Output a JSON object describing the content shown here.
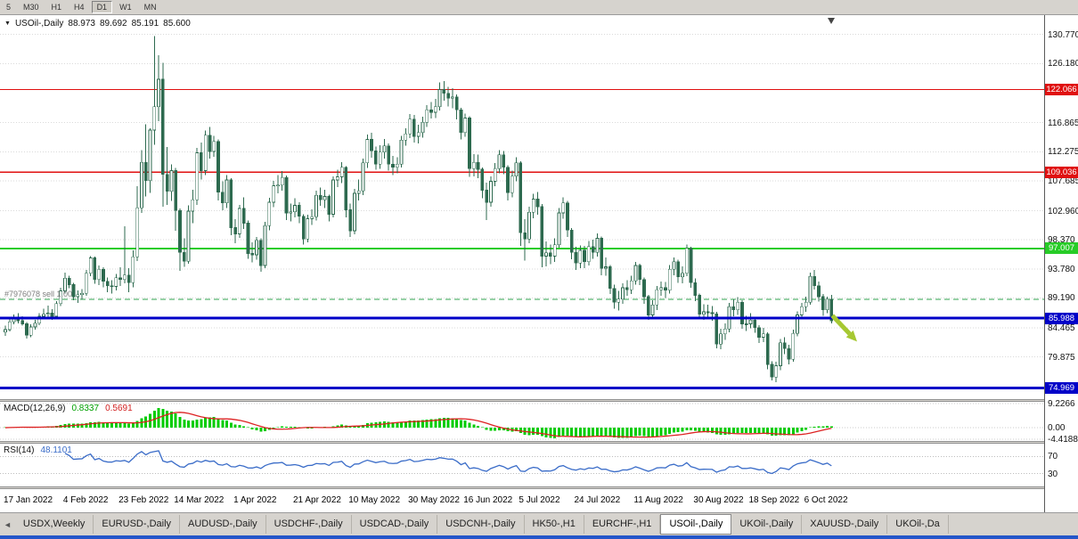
{
  "toolbar": {
    "timeframes": [
      "5",
      "M30",
      "H1",
      "H4",
      "D1",
      "W1",
      "MN"
    ],
    "active": "D1"
  },
  "chart_header": {
    "symbol": "USOil-,Daily",
    "open": "88.973",
    "high": "89.692",
    "low": "85.191",
    "close": "85.600"
  },
  "price_axis": {
    "ticks": [
      {
        "text": "130.770",
        "value": 130.77
      },
      {
        "text": "126.180",
        "value": 126.18
      },
      {
        "text": "116.865",
        "value": 116.865
      },
      {
        "text": "112.275",
        "value": 112.275
      },
      {
        "text": "107.685",
        "value": 107.685
      },
      {
        "text": "102.960",
        "value": 102.96
      },
      {
        "text": "98.370",
        "value": 98.37
      },
      {
        "text": "93.780",
        "value": 93.78
      },
      {
        "text": "89.190",
        "value": 89.19
      },
      {
        "text": "84.465",
        "value": 84.465
      },
      {
        "text": "79.875",
        "value": 79.875
      }
    ],
    "badges": [
      {
        "text": "122.066",
        "value": 122.066,
        "color": "#e01010"
      },
      {
        "text": "109.036",
        "value": 109.036,
        "color": "#e01010"
      },
      {
        "text": "97.007",
        "value": 97.007,
        "color": "#27cc27"
      },
      {
        "text": "85.988",
        "value": 85.988,
        "color": "#0000c8"
      },
      {
        "text": "74.969",
        "value": 74.969,
        "color": "#0000c8"
      }
    ]
  },
  "macd_panel": {
    "title": "MACD(12,26,9)",
    "value": "0.8337",
    "signal_value": "0.5691",
    "axis_labels": [
      {
        "text": "9.2266",
        "value": 9.2266
      },
      {
        "text": "0.00",
        "value": 0
      },
      {
        "text": "-4.4188",
        "value": -4.4188
      }
    ]
  },
  "rsi_panel": {
    "title": "RSI(14)",
    "value": "48.1101",
    "levels": [
      {
        "text": "70",
        "value": 70
      },
      {
        "text": "30",
        "value": 30
      }
    ]
  },
  "tabs": {
    "items": [
      "USDX,Weekly",
      "EURUSD-,Daily",
      "AUDUSD-,Daily",
      "USDCHF-,Daily",
      "USDCAD-,Daily",
      "USDCNH-,Daily",
      "HK50-,H1",
      "EURCHF-,H1",
      "USOil-,Daily",
      "UKOil-,Daily",
      "XAUUSD-,Daily",
      "UKOil-,Da"
    ],
    "active_index": 8,
    "scroll_left": "◄"
  },
  "colors": {
    "bull": "#ffffff",
    "bear": "#2d6a4f",
    "candle_border": "#2d6a4f",
    "macd_hist": "#00cc00",
    "macd_signal": "#dd2222",
    "rsi_line": "#3a6cc8",
    "grid": "#dadada",
    "level_dotted": "#bdbdbd"
  },
  "chart_data": {
    "type": "candlestick",
    "title": "USOil-,Daily",
    "ylim": [
      73.5,
      132.0
    ],
    "x_tick_indices": [
      0,
      14,
      27,
      40,
      54,
      68,
      81,
      95,
      108,
      121,
      134,
      148,
      162,
      175,
      188
    ],
    "x_tick_labels": [
      "17 Jan 2022",
      "4 Feb 2022",
      "23 Feb 2022",
      "14 Mar 2022",
      "1 Apr 2022",
      "21 Apr 2022",
      "10 May 2022",
      "30 May 2022",
      "16 Jun 2022",
      "5 Jul 2022",
      "24 Jul 2022",
      "11 Aug 2022",
      "30 Aug 2022",
      "18 Sep 2022",
      "6 Oct 2022"
    ],
    "horizontal_lines": [
      {
        "price": 122.066,
        "color": "#e01010",
        "width": 1.2,
        "style": "solid",
        "layer": "below"
      },
      {
        "price": 109.036,
        "color": "#e01010",
        "width": 1.2,
        "style": "solid",
        "layer": "below"
      },
      {
        "price": 97.007,
        "color": "#27cc27",
        "width": 2,
        "style": "solid",
        "layer": "below"
      },
      {
        "price": 88.973,
        "color": "#2fa34f",
        "width": 1,
        "style": "dashed",
        "layer": "below",
        "label": "#7976078 sell 1.00"
      },
      {
        "price": 85.988,
        "color": "#0000c8",
        "width": 3,
        "style": "solid",
        "layer": "above"
      },
      {
        "price": 74.969,
        "color": "#0000c8",
        "width": 3,
        "style": "solid",
        "layer": "above"
      }
    ],
    "indicators": [
      {
        "name": "MACD",
        "params": "12,26,9",
        "last_values": [
          0.8337,
          0.5691
        ],
        "range": [
          -4.4188,
          9.2266
        ]
      },
      {
        "name": "RSI",
        "params": "14",
        "last_value": 48.1101,
        "levels": [
          70,
          30
        ]
      }
    ],
    "trend_arrow": {
      "from_index": 194.2,
      "from_price": 86.4,
      "to_index": 200,
      "to_price": 82.3,
      "color": "#a6c832"
    },
    "candles": [
      [
        83.8,
        84.8,
        83.2,
        84.2
      ],
      [
        84.2,
        85.9,
        83.9,
        85.4
      ],
      [
        85.4,
        86.6,
        85.0,
        86.1
      ],
      [
        86.1,
        86.8,
        85.2,
        85.6
      ],
      [
        85.6,
        86.3,
        84.8,
        85.1
      ],
      [
        85.1,
        85.4,
        82.8,
        83.3
      ],
      [
        83.3,
        85.0,
        83.0,
        84.6
      ],
      [
        84.6,
        85.7,
        84.2,
        85.2
      ],
      [
        85.2,
        86.8,
        84.9,
        86.3
      ],
      [
        86.3,
        87.5,
        85.9,
        86.6
      ],
      [
        86.6,
        88.0,
        86.2,
        86.8
      ],
      [
        86.8,
        87.4,
        85.7,
        86.3
      ],
      [
        86.3,
        88.7,
        86.0,
        88.3
      ],
      [
        88.3,
        90.8,
        87.9,
        90.3
      ],
      [
        90.3,
        93.2,
        89.9,
        92.3
      ],
      [
        92.3,
        92.7,
        90.7,
        91.3
      ],
      [
        91.3,
        91.6,
        88.8,
        89.4
      ],
      [
        89.4,
        90.4,
        88.4,
        89.7
      ],
      [
        89.7,
        90.6,
        89.0,
        89.9
      ],
      [
        89.9,
        93.6,
        89.5,
        93.1
      ],
      [
        93.1,
        95.8,
        92.6,
        95.5
      ],
      [
        95.5,
        95.7,
        91.4,
        92.1
      ],
      [
        92.1,
        94.3,
        91.2,
        93.7
      ],
      [
        93.7,
        94.0,
        90.9,
        91.8
      ],
      [
        91.8,
        92.4,
        90.1,
        91.1
      ],
      [
        91.1,
        92.0,
        89.9,
        91.0
      ],
      [
        91.0,
        93.0,
        90.4,
        92.4
      ],
      [
        92.4,
        94.0,
        91.1,
        92.1
      ],
      [
        92.1,
        100.5,
        91.5,
        92.8
      ],
      [
        92.8,
        93.9,
        90.1,
        91.6
      ],
      [
        91.6,
        96.7,
        90.9,
        95.7
      ],
      [
        95.7,
        106.8,
        95.0,
        103.4
      ],
      [
        103.4,
        112.5,
        102.6,
        110.6
      ],
      [
        110.6,
        116.6,
        105.2,
        107.7
      ],
      [
        107.7,
        116.0,
        105.8,
        115.7
      ],
      [
        115.7,
        130.5,
        113.4,
        119.4
      ],
      [
        119.4,
        127.5,
        117.1,
        123.7
      ],
      [
        123.7,
        126.3,
        103.6,
        108.7
      ],
      [
        108.7,
        113.0,
        103.9,
        106.0
      ],
      [
        106.0,
        110.3,
        104.5,
        109.3
      ],
      [
        109.3,
        109.7,
        99.8,
        103.0
      ],
      [
        103.0,
        103.3,
        93.5,
        96.4
      ],
      [
        96.4,
        98.6,
        94.1,
        95.0
      ],
      [
        95.0,
        103.8,
        94.6,
        102.9
      ],
      [
        102.9,
        106.3,
        101.0,
        104.7
      ],
      [
        104.7,
        112.9,
        103.9,
        112.1
      ],
      [
        112.1,
        113.7,
        107.9,
        109.3
      ],
      [
        109.3,
        115.6,
        108.6,
        114.9
      ],
      [
        114.9,
        116.2,
        111.2,
        112.3
      ],
      [
        112.3,
        114.8,
        111.5,
        113.9
      ],
      [
        113.9,
        114.2,
        104.6,
        105.9
      ],
      [
        105.9,
        107.6,
        103.0,
        104.2
      ],
      [
        104.2,
        108.6,
        103.4,
        107.8
      ],
      [
        107.8,
        108.1,
        99.1,
        100.3
      ],
      [
        100.3,
        101.6,
        97.8,
        99.3
      ],
      [
        99.3,
        103.9,
        98.7,
        103.3
      ],
      [
        103.3,
        105.1,
        100.1,
        101.0
      ],
      [
        101.0,
        101.4,
        95.4,
        96.2
      ],
      [
        96.2,
        98.0,
        94.8,
        96.0
      ],
      [
        96.0,
        98.8,
        95.2,
        98.3
      ],
      [
        98.3,
        98.6,
        93.3,
        94.3
      ],
      [
        94.3,
        101.2,
        93.9,
        100.6
      ],
      [
        100.6,
        105.0,
        99.9,
        104.3
      ],
      [
        104.3,
        107.7,
        103.5,
        106.9
      ],
      [
        106.9,
        108.6,
        105.7,
        107.0
      ],
      [
        107.0,
        109.2,
        106.1,
        108.2
      ],
      [
        108.2,
        108.5,
        101.5,
        102.6
      ],
      [
        102.6,
        104.1,
        101.3,
        102.8
      ],
      [
        102.8,
        104.9,
        101.9,
        103.8
      ],
      [
        103.8,
        104.3,
        101.0,
        102.1
      ],
      [
        102.1,
        102.4,
        97.6,
        98.5
      ],
      [
        98.5,
        102.3,
        98.0,
        101.7
      ],
      [
        101.7,
        103.2,
        100.7,
        102.0
      ],
      [
        102.0,
        106.1,
        101.4,
        105.4
      ],
      [
        105.4,
        106.6,
        103.7,
        104.7
      ],
      [
        104.7,
        106.3,
        103.4,
        105.2
      ],
      [
        105.2,
        105.5,
        101.3,
        102.4
      ],
      [
        102.4,
        108.4,
        101.9,
        107.8
      ],
      [
        107.8,
        109.4,
        106.7,
        108.3
      ],
      [
        108.3,
        110.6,
        107.3,
        109.8
      ],
      [
        109.8,
        110.0,
        101.9,
        103.1
      ],
      [
        103.1,
        104.1,
        98.8,
        99.8
      ],
      [
        99.8,
        106.4,
        99.2,
        105.7
      ],
      [
        105.7,
        107.9,
        104.6,
        106.1
      ],
      [
        106.1,
        111.2,
        105.4,
        110.5
      ],
      [
        110.5,
        115.0,
        109.7,
        114.2
      ],
      [
        114.2,
        115.3,
        111.3,
        112.4
      ],
      [
        112.4,
        113.1,
        109.4,
        110.3
      ],
      [
        110.3,
        113.3,
        109.6,
        112.2
      ],
      [
        112.2,
        114.3,
        111.2,
        113.2
      ],
      [
        113.2,
        113.6,
        109.3,
        110.3
      ],
      [
        110.3,
        111.6,
        108.6,
        109.8
      ],
      [
        109.8,
        111.4,
        108.9,
        110.3
      ],
      [
        110.3,
        114.8,
        109.8,
        114.1
      ],
      [
        114.1,
        116.0,
        113.2,
        115.1
      ],
      [
        115.1,
        118.2,
        114.4,
        117.4
      ],
      [
        117.4,
        118.1,
        113.7,
        114.7
      ],
      [
        114.7,
        116.5,
        113.6,
        115.3
      ],
      [
        115.3,
        117.8,
        114.5,
        116.9
      ],
      [
        116.9,
        119.6,
        116.2,
        118.9
      ],
      [
        118.9,
        120.1,
        117.5,
        118.5
      ],
      [
        118.5,
        120.6,
        117.6,
        119.4
      ],
      [
        119.4,
        123.2,
        118.8,
        122.1
      ],
      [
        122.1,
        123.4,
        120.3,
        121.5
      ],
      [
        121.5,
        122.5,
        119.4,
        120.7
      ],
      [
        120.7,
        122.3,
        119.1,
        120.9
      ],
      [
        120.9,
        121.3,
        117.4,
        118.9
      ],
      [
        118.9,
        119.2,
        114.2,
        115.3
      ],
      [
        115.3,
        118.3,
        114.6,
        117.6
      ],
      [
        117.6,
        117.9,
        108.3,
        109.6
      ],
      [
        109.6,
        111.9,
        108.4,
        110.6
      ],
      [
        110.6,
        111.8,
        108.1,
        109.5
      ],
      [
        109.5,
        109.8,
        104.9,
        106.2
      ],
      [
        106.2,
        107.4,
        101.5,
        104.3
      ],
      [
        104.3,
        108.4,
        103.6,
        107.6
      ],
      [
        107.6,
        110.5,
        106.8,
        109.6
      ],
      [
        109.6,
        112.5,
        108.9,
        111.8
      ],
      [
        111.8,
        112.4,
        108.7,
        109.8
      ],
      [
        109.8,
        110.1,
        104.6,
        105.8
      ],
      [
        105.8,
        109.3,
        105.1,
        108.4
      ],
      [
        108.4,
        111.4,
        107.6,
        110.5
      ],
      [
        110.5,
        110.8,
        97.4,
        99.5
      ],
      [
        99.5,
        101.6,
        95.1,
        98.5
      ],
      [
        98.5,
        103.6,
        97.8,
        102.7
      ],
      [
        102.7,
        105.6,
        101.8,
        104.8
      ],
      [
        104.8,
        105.9,
        102.3,
        103.6
      ],
      [
        103.6,
        104.0,
        94.0,
        95.8
      ],
      [
        95.8,
        98.1,
        94.2,
        96.3
      ],
      [
        96.3,
        97.6,
        94.5,
        95.8
      ],
      [
        95.8,
        98.6,
        94.9,
        97.6
      ],
      [
        97.6,
        103.4,
        97.1,
        102.6
      ],
      [
        102.6,
        105.1,
        101.7,
        104.2
      ],
      [
        104.2,
        104.5,
        98.8,
        99.9
      ],
      [
        99.9,
        100.2,
        95.3,
        96.4
      ],
      [
        96.4,
        97.3,
        93.6,
        94.7
      ],
      [
        94.7,
        97.5,
        93.9,
        96.7
      ],
      [
        96.7,
        97.4,
        93.9,
        94.9
      ],
      [
        94.9,
        98.2,
        94.3,
        97.3
      ],
      [
        97.3,
        98.4,
        95.4,
        96.4
      ],
      [
        96.4,
        99.4,
        95.7,
        98.6
      ],
      [
        98.6,
        98.9,
        92.8,
        93.9
      ],
      [
        93.9,
        95.6,
        92.7,
        94.1
      ],
      [
        94.1,
        94.4,
        89.8,
        90.7
      ],
      [
        90.7,
        91.3,
        87.5,
        88.5
      ],
      [
        88.5,
        90.3,
        87.2,
        89.0
      ],
      [
        89.0,
        91.5,
        88.3,
        90.8
      ],
      [
        90.8,
        92.0,
        89.5,
        90.5
      ],
      [
        90.5,
        92.7,
        89.8,
        91.9
      ],
      [
        91.9,
        94.9,
        91.3,
        94.3
      ],
      [
        94.3,
        94.6,
        91.2,
        92.1
      ],
      [
        92.1,
        92.4,
        88.3,
        89.4
      ],
      [
        89.4,
        89.7,
        85.7,
        86.5
      ],
      [
        86.5,
        88.8,
        85.8,
        88.1
      ],
      [
        88.1,
        91.1,
        87.3,
        90.5
      ],
      [
        90.5,
        91.8,
        89.5,
        90.8
      ],
      [
        90.8,
        91.7,
        89.2,
        90.4
      ],
      [
        90.4,
        94.4,
        89.9,
        93.7
      ],
      [
        93.7,
        95.6,
        92.8,
        94.9
      ],
      [
        94.9,
        95.2,
        91.6,
        92.5
      ],
      [
        92.5,
        94.2,
        91.5,
        93.1
      ],
      [
        93.1,
        97.6,
        92.6,
        97.0
      ],
      [
        97.0,
        97.3,
        90.8,
        91.6
      ],
      [
        91.6,
        92.3,
        88.7,
        89.6
      ],
      [
        89.6,
        89.9,
        85.9,
        86.6
      ],
      [
        86.6,
        88.2,
        85.7,
        87.0
      ],
      [
        87.0,
        88.1,
        85.9,
        86.9
      ],
      [
        86.9,
        87.9,
        85.6,
        86.7
      ],
      [
        86.7,
        87.0,
        81.2,
        81.9
      ],
      [
        81.9,
        84.3,
        81.1,
        83.5
      ],
      [
        83.5,
        85.2,
        82.6,
        84.3
      ],
      [
        84.3,
        88.4,
        83.8,
        87.8
      ],
      [
        87.8,
        89.0,
        86.3,
        87.3
      ],
      [
        87.3,
        89.3,
        86.5,
        88.5
      ],
      [
        88.5,
        88.8,
        84.3,
        85.1
      ],
      [
        85.1,
        86.4,
        84.0,
        85.1
      ],
      [
        85.1,
        86.8,
        84.4,
        85.7
      ],
      [
        85.7,
        86.2,
        83.7,
        84.5
      ],
      [
        84.5,
        84.9,
        82.1,
        83.0
      ],
      [
        83.0,
        84.5,
        82.2,
        83.5
      ],
      [
        83.5,
        83.8,
        77.9,
        78.7
      ],
      [
        78.7,
        79.2,
        76.2,
        76.7
      ],
      [
        76.7,
        79.1,
        75.9,
        78.5
      ],
      [
        78.5,
        82.7,
        77.8,
        82.1
      ],
      [
        82.1,
        83.0,
        80.3,
        81.2
      ],
      [
        81.2,
        81.8,
        78.7,
        79.5
      ],
      [
        79.5,
        84.2,
        79.1,
        83.6
      ],
      [
        83.6,
        87.1,
        83.1,
        86.5
      ],
      [
        86.5,
        88.4,
        85.8,
        87.8
      ],
      [
        87.8,
        89.4,
        87.0,
        88.5
      ],
      [
        88.5,
        93.2,
        88.1,
        92.6
      ],
      [
        92.6,
        93.6,
        90.5,
        91.1
      ],
      [
        91.1,
        91.8,
        88.6,
        89.4
      ],
      [
        89.4,
        89.8,
        86.4,
        87.3
      ],
      [
        87.3,
        89.4,
        86.8,
        89.0
      ],
      [
        88.973,
        89.692,
        85.191,
        85.6
      ]
    ]
  }
}
